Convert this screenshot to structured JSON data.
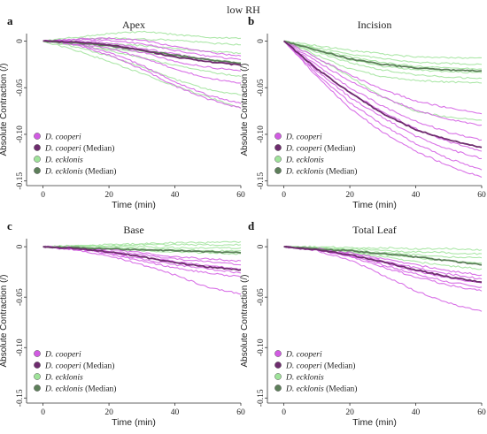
{
  "figure_title": "low RH",
  "colors": {
    "cooperi": "#d25be3",
    "cooperi_median": "#6e2c6e",
    "ecklonis": "#9fe39a",
    "ecklonis_median": "#5d7f5a"
  },
  "chart_data": [
    {
      "type": "line",
      "panel": "a",
      "title": "Apex",
      "xlabel": "Time (min)",
      "ylabel": "Absolute Contraction (/)",
      "xlim": [
        -5,
        60
      ],
      "ylim": [
        -0.155,
        0.008
      ],
      "x_ticks": [
        0,
        20,
        40,
        60
      ],
      "y_ticks": [
        0,
        -0.05,
        -0.1,
        -0.15
      ],
      "y_tick_labels": [
        "0",
        "-0.05",
        "-0.10",
        "-0.15"
      ],
      "legend": [
        "D. cooperi",
        "D. cooperi (Median)",
        "D. ecklonis",
        "D. ecklonis (Median)"
      ],
      "legend_position": "bottom-left",
      "grid": false,
      "x": [
        0,
        10,
        20,
        30,
        40,
        50,
        60
      ],
      "series": [
        {
          "group": "ecklonis",
          "values": [
            0,
            0.004,
            0.008,
            0.01,
            0.007,
            0.004,
            0.003
          ]
        },
        {
          "group": "ecklonis",
          "values": [
            0,
            0.002,
            0.003,
            0.002,
            0.001,
            -0.002,
            -0.004
          ]
        },
        {
          "group": "ecklonis",
          "values": [
            0,
            -0.001,
            -0.003,
            -0.005,
            -0.008,
            -0.011,
            -0.013
          ]
        },
        {
          "group": "ecklonis",
          "values": [
            0,
            -0.003,
            -0.008,
            -0.012,
            -0.016,
            -0.02,
            -0.023
          ]
        },
        {
          "group": "ecklonis",
          "values": [
            0,
            -0.006,
            -0.016,
            -0.028,
            -0.041,
            -0.052,
            -0.058
          ]
        },
        {
          "group": "ecklonis",
          "values": [
            0,
            -0.01,
            -0.022,
            -0.035,
            -0.048,
            -0.06,
            -0.072
          ]
        },
        {
          "group": "ecklonis",
          "values": [
            0,
            -0.004,
            -0.01,
            -0.018,
            -0.026,
            -0.033,
            -0.038
          ]
        },
        {
          "group": "cooperi",
          "values": [
            0,
            0.002,
            0.003,
            0.001,
            -0.006,
            -0.012,
            -0.016
          ]
        },
        {
          "group": "cooperi",
          "values": [
            0,
            0.001,
            0.001,
            -0.003,
            -0.01,
            -0.016,
            -0.02
          ]
        },
        {
          "group": "cooperi",
          "values": [
            0,
            0.0,
            -0.002,
            -0.008,
            -0.014,
            -0.02,
            -0.025
          ]
        },
        {
          "group": "cooperi",
          "values": [
            0,
            -0.001,
            -0.005,
            -0.012,
            -0.022,
            -0.028,
            -0.032
          ]
        },
        {
          "group": "cooperi",
          "values": [
            0,
            -0.002,
            -0.008,
            -0.018,
            -0.03,
            -0.04,
            -0.045
          ]
        },
        {
          "group": "cooperi",
          "values": [
            0,
            -0.003,
            -0.012,
            -0.026,
            -0.044,
            -0.058,
            -0.067
          ]
        },
        {
          "group": "cooperi",
          "values": [
            0,
            -0.004,
            -0.015,
            -0.03,
            -0.048,
            -0.062,
            -0.072
          ]
        },
        {
          "group": "cooperi_median",
          "values": [
            0,
            -0.001,
            -0.004,
            -0.01,
            -0.017,
            -0.022,
            -0.026
          ]
        },
        {
          "group": "ecklonis_median",
          "values": [
            0,
            -0.002,
            -0.005,
            -0.01,
            -0.015,
            -0.02,
            -0.024
          ]
        }
      ]
    },
    {
      "type": "line",
      "panel": "b",
      "title": "Incision",
      "xlabel": "Time (min)",
      "ylabel": "Absolute Contraction (/)",
      "xlim": [
        -5,
        60
      ],
      "ylim": [
        -0.155,
        0.008
      ],
      "x_ticks": [
        0,
        20,
        40,
        60
      ],
      "y_ticks": [
        0,
        -0.05,
        -0.1,
        -0.15
      ],
      "y_tick_labels": [
        "0",
        "-0.05",
        "-0.10",
        "-0.15"
      ],
      "legend": [
        "D. cooperi",
        "D. cooperi (Median)",
        "D. ecklonis",
        "D. ecklonis (Median)"
      ],
      "legend_position": "bottom-left",
      "grid": false,
      "x": [
        0,
        10,
        20,
        30,
        40,
        50,
        60
      ],
      "series": [
        {
          "group": "ecklonis",
          "values": [
            0,
            -0.005,
            -0.01,
            -0.014,
            -0.017,
            -0.018,
            -0.018
          ]
        },
        {
          "group": "ecklonis",
          "values": [
            0,
            -0.007,
            -0.014,
            -0.019,
            -0.023,
            -0.024,
            -0.025
          ]
        },
        {
          "group": "ecklonis",
          "values": [
            0,
            -0.009,
            -0.017,
            -0.023,
            -0.027,
            -0.029,
            -0.03
          ]
        },
        {
          "group": "ecklonis",
          "values": [
            0,
            -0.01,
            -0.02,
            -0.027,
            -0.031,
            -0.033,
            -0.034
          ]
        },
        {
          "group": "ecklonis",
          "values": [
            0,
            -0.012,
            -0.023,
            -0.031,
            -0.036,
            -0.039,
            -0.04
          ]
        },
        {
          "group": "ecklonis",
          "values": [
            0,
            -0.015,
            -0.03,
            -0.038,
            -0.042,
            -0.044,
            -0.045
          ]
        },
        {
          "group": "ecklonis",
          "values": [
            0,
            -0.018,
            -0.038,
            -0.06,
            -0.075,
            -0.082,
            -0.085
          ]
        },
        {
          "group": "cooperi",
          "values": [
            0,
            -0.018,
            -0.036,
            -0.052,
            -0.064,
            -0.072,
            -0.078
          ]
        },
        {
          "group": "cooperi",
          "values": [
            0,
            -0.022,
            -0.043,
            -0.06,
            -0.074,
            -0.084,
            -0.09
          ]
        },
        {
          "group": "cooperi",
          "values": [
            0,
            -0.026,
            -0.05,
            -0.07,
            -0.086,
            -0.098,
            -0.106
          ]
        },
        {
          "group": "cooperi",
          "values": [
            0,
            -0.029,
            -0.055,
            -0.076,
            -0.094,
            -0.108,
            -0.118
          ]
        },
        {
          "group": "cooperi",
          "values": [
            0,
            -0.032,
            -0.06,
            -0.082,
            -0.102,
            -0.116,
            -0.126
          ]
        },
        {
          "group": "cooperi",
          "values": [
            0,
            -0.035,
            -0.066,
            -0.09,
            -0.11,
            -0.126,
            -0.138
          ]
        },
        {
          "group": "cooperi",
          "values": [
            0,
            -0.038,
            -0.072,
            -0.098,
            -0.118,
            -0.134,
            -0.146
          ]
        },
        {
          "group": "cooperi_median",
          "values": [
            0,
            -0.03,
            -0.055,
            -0.078,
            -0.095,
            -0.106,
            -0.114
          ]
        },
        {
          "group": "ecklonis_median",
          "values": [
            0,
            -0.01,
            -0.019,
            -0.025,
            -0.029,
            -0.031,
            -0.032
          ]
        }
      ]
    },
    {
      "type": "line",
      "panel": "c",
      "title": "Base",
      "xlabel": "Time (min)",
      "ylabel": "Absolute Contraction (/)",
      "xlim": [
        -5,
        60
      ],
      "ylim": [
        -0.155,
        0.008
      ],
      "x_ticks": [
        0,
        20,
        40,
        60
      ],
      "y_ticks": [
        0,
        -0.05,
        -0.1,
        -0.15
      ],
      "y_tick_labels": [
        "0",
        "-0.05",
        "-0.10",
        "-0.15"
      ],
      "legend": [
        "D. cooperi",
        "D. cooperi (Median)",
        "D. ecklonis",
        "D. ecklonis (Median)"
      ],
      "legend_position": "bottom-left",
      "grid": false,
      "x": [
        0,
        10,
        20,
        30,
        40,
        50,
        60
      ],
      "series": [
        {
          "group": "ecklonis",
          "values": [
            0,
            0.001,
            0.002,
            0.003,
            0.004,
            0.004,
            0.005
          ]
        },
        {
          "group": "ecklonis",
          "values": [
            0,
            0.001,
            0.001,
            0.002,
            0.002,
            0.002,
            0.002
          ]
        },
        {
          "group": "ecklonis",
          "values": [
            0,
            0.0,
            0.0,
            0.0,
            -0.001,
            -0.001,
            -0.001
          ]
        },
        {
          "group": "ecklonis",
          "values": [
            0,
            0.0,
            -0.001,
            -0.002,
            -0.003,
            -0.004,
            -0.004
          ]
        },
        {
          "group": "ecklonis",
          "values": [
            0,
            -0.001,
            -0.002,
            -0.004,
            -0.005,
            -0.006,
            -0.007
          ]
        },
        {
          "group": "cooperi",
          "values": [
            0,
            -0.001,
            -0.003,
            -0.006,
            -0.01,
            -0.012,
            -0.014
          ]
        },
        {
          "group": "cooperi",
          "values": [
            0,
            -0.001,
            -0.004,
            -0.008,
            -0.012,
            -0.015,
            -0.018
          ]
        },
        {
          "group": "cooperi",
          "values": [
            0,
            -0.002,
            -0.005,
            -0.01,
            -0.015,
            -0.019,
            -0.022
          ]
        },
        {
          "group": "cooperi",
          "values": [
            0,
            -0.002,
            -0.006,
            -0.012,
            -0.018,
            -0.022,
            -0.026
          ]
        },
        {
          "group": "cooperi",
          "values": [
            0,
            -0.002,
            -0.007,
            -0.014,
            -0.021,
            -0.026,
            -0.03
          ]
        },
        {
          "group": "cooperi",
          "values": [
            0,
            -0.003,
            -0.009,
            -0.018,
            -0.028,
            -0.04,
            -0.047
          ]
        },
        {
          "group": "cooperi_median",
          "values": [
            0,
            -0.002,
            -0.005,
            -0.01,
            -0.016,
            -0.02,
            -0.023
          ]
        },
        {
          "group": "ecklonis_median",
          "values": [
            0,
            -0.001,
            -0.002,
            -0.003,
            -0.004,
            -0.005,
            -0.006
          ]
        }
      ]
    },
    {
      "type": "line",
      "panel": "d",
      "title": "Total Leaf",
      "xlabel": "Time (min)",
      "ylabel": "Absolute Contraction (/)",
      "xlim": [
        -5,
        60
      ],
      "ylim": [
        -0.155,
        0.008
      ],
      "x_ticks": [
        0,
        20,
        40,
        60
      ],
      "y_ticks": [
        0,
        -0.05,
        -0.1,
        -0.15
      ],
      "y_tick_labels": [
        "0",
        "-0.05",
        "-0.10",
        "-0.15"
      ],
      "legend": [
        "D. cooperi",
        "D. cooperi (Median)",
        "D. ecklonis",
        "D. ecklonis (Median)"
      ],
      "legend_position": "bottom-left",
      "grid": false,
      "x": [
        0,
        10,
        20,
        30,
        40,
        50,
        60
      ],
      "series": [
        {
          "group": "ecklonis",
          "values": [
            0,
            0.0,
            -0.001,
            -0.001,
            -0.002,
            -0.002,
            -0.003
          ]
        },
        {
          "group": "ecklonis",
          "values": [
            0,
            -0.001,
            -0.002,
            -0.004,
            -0.005,
            -0.006,
            -0.007
          ]
        },
        {
          "group": "ecklonis",
          "values": [
            0,
            -0.001,
            -0.003,
            -0.006,
            -0.008,
            -0.01,
            -0.011
          ]
        },
        {
          "group": "ecklonis",
          "values": [
            0,
            -0.002,
            -0.005,
            -0.008,
            -0.011,
            -0.014,
            -0.016
          ]
        },
        {
          "group": "ecklonis",
          "values": [
            0,
            -0.002,
            -0.006,
            -0.01,
            -0.015,
            -0.019,
            -0.022
          ]
        },
        {
          "group": "cooperi",
          "values": [
            0,
            -0.002,
            -0.006,
            -0.012,
            -0.018,
            -0.024,
            -0.028
          ]
        },
        {
          "group": "cooperi",
          "values": [
            0,
            -0.002,
            -0.007,
            -0.014,
            -0.021,
            -0.027,
            -0.032
          ]
        },
        {
          "group": "cooperi",
          "values": [
            0,
            -0.003,
            -0.008,
            -0.016,
            -0.024,
            -0.031,
            -0.036
          ]
        },
        {
          "group": "cooperi",
          "values": [
            0,
            -0.003,
            -0.009,
            -0.018,
            -0.027,
            -0.035,
            -0.04
          ]
        },
        {
          "group": "cooperi",
          "values": [
            0,
            -0.003,
            -0.01,
            -0.02,
            -0.03,
            -0.038,
            -0.044
          ]
        },
        {
          "group": "cooperi",
          "values": [
            0,
            -0.004,
            -0.013,
            -0.028,
            -0.044,
            -0.056,
            -0.064
          ]
        },
        {
          "group": "cooperi_median",
          "values": [
            0,
            -0.003,
            -0.008,
            -0.015,
            -0.023,
            -0.03,
            -0.035
          ]
        },
        {
          "group": "ecklonis_median",
          "values": [
            0,
            -0.002,
            -0.004,
            -0.007,
            -0.01,
            -0.014,
            -0.018
          ]
        }
      ]
    }
  ]
}
